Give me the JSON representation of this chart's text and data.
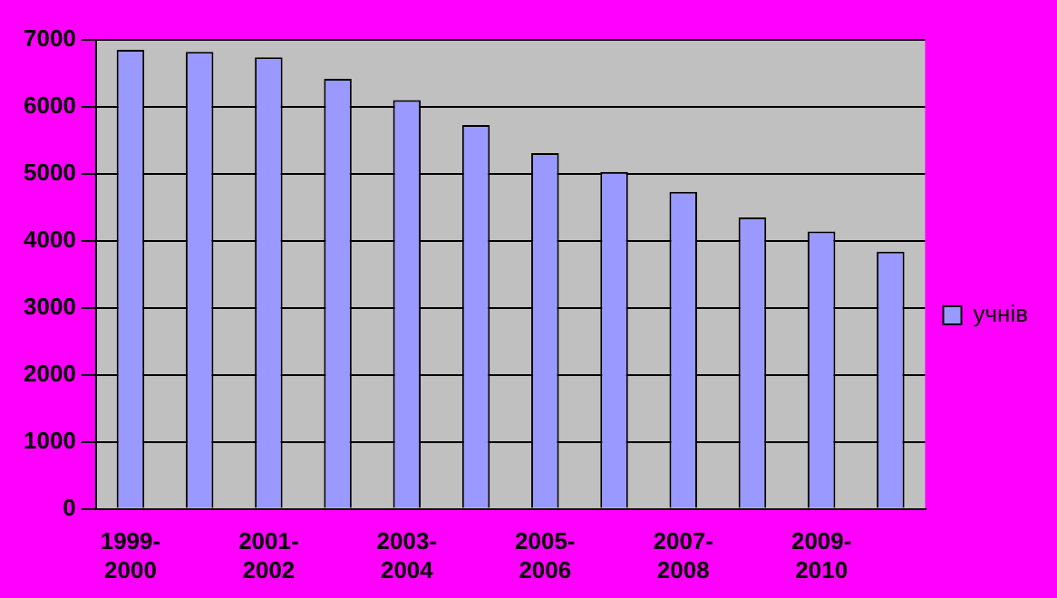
{
  "chart_data": {
    "type": "bar",
    "categories": [
      "1999-2000",
      null,
      "2001-2002",
      null,
      "2003-2004",
      null,
      "2005-2006",
      null,
      "2007-2008",
      null,
      "2009-2010",
      null
    ],
    "series": [
      {
        "name": "учнів",
        "color": "#9999ff",
        "values": [
          6850,
          6820,
          6740,
          6420,
          6100,
          5730,
          5310,
          5030,
          4730,
          4350,
          4140,
          3840
        ]
      }
    ],
    "ylim": [
      0,
      7000
    ],
    "yticks": [
      0,
      1000,
      2000,
      3000,
      4000,
      5000,
      6000,
      7000
    ],
    "grid": "y",
    "legend": "right"
  }
}
